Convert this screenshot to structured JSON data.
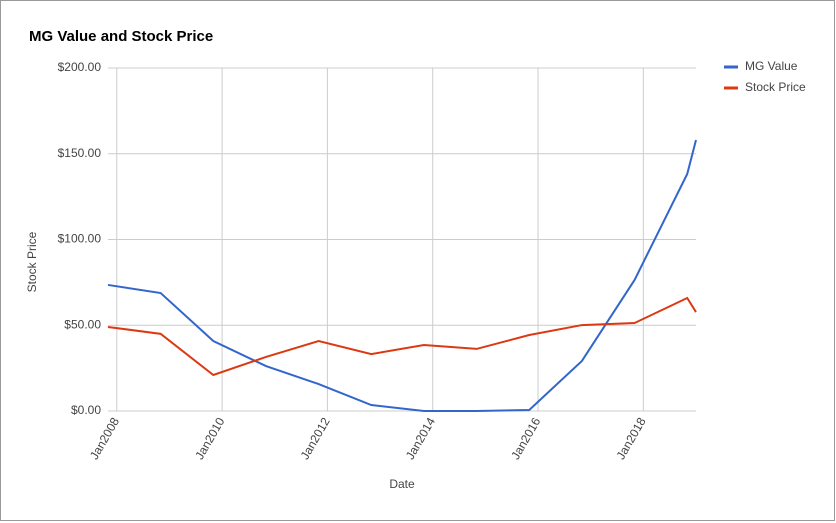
{
  "chart_data": {
    "type": "line",
    "title": "MG Value and Stock Price",
    "x_label": "Date",
    "y_label": "Stock Price",
    "x": [
      "2007-11",
      "2008-11",
      "2009-11",
      "2010-11",
      "2011-11",
      "2012-11",
      "2013-11",
      "2014-11",
      "2015-11",
      "2016-11",
      "2017-11",
      "2018-11",
      "2019-01"
    ],
    "series": [
      {
        "name": "MG Value",
        "color": "#3366cc",
        "values": [
          73.5,
          68.8,
          40.8,
          26.2,
          15.7,
          3.5,
          0,
          0,
          0.6,
          29.2,
          76.4,
          138.2,
          158
        ]
      },
      {
        "name": "Stock Price",
        "color": "#dc3912",
        "values": [
          49,
          45,
          21,
          31.5,
          40.8,
          33.2,
          38.5,
          36.2,
          44.3,
          50.1,
          51.3,
          65.9,
          57.7
        ]
      }
    ],
    "xlim": [
      "2007-11",
      "2019-01"
    ],
    "xticks": [
      {
        "value": "2008-01",
        "label": "Jan2008"
      },
      {
        "value": "2010-01",
        "label": "Jan2010"
      },
      {
        "value": "2012-01",
        "label": "Jan2012"
      },
      {
        "value": "2014-01",
        "label": "Jan2014"
      },
      {
        "value": "2016-01",
        "label": "Jan2016"
      },
      {
        "value": "2018-01",
        "label": "Jan2018"
      }
    ],
    "ylim": [
      0,
      200
    ],
    "yticks": [
      {
        "value": 0,
        "label": "$0.00"
      },
      {
        "value": 50,
        "label": "$50.00"
      },
      {
        "value": 100,
        "label": "$100.00"
      },
      {
        "value": 150,
        "label": "$150.00"
      },
      {
        "value": 200,
        "label": "$200.00"
      }
    ],
    "grid": true,
    "legend": "right"
  }
}
